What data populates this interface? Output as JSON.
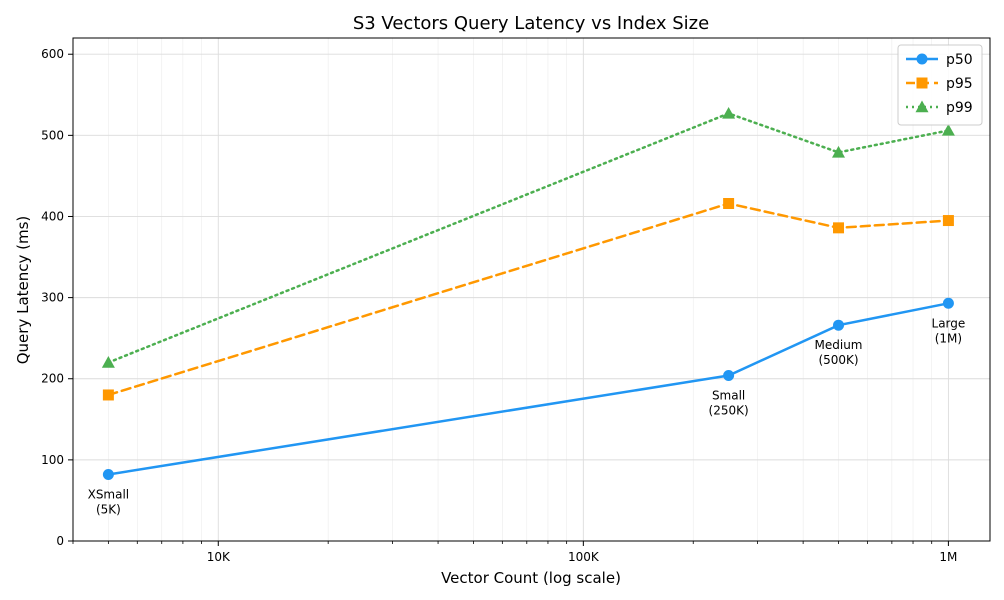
{
  "chart_data": {
    "type": "line",
    "title": "S3 Vectors Query Latency vs Index Size",
    "xlabel": "Vector Count (log scale)",
    "ylabel": "Query Latency (ms)",
    "x_scale": "log",
    "xlim": [
      4000,
      1300000
    ],
    "ylim": [
      0,
      620
    ],
    "x_ticks": [
      {
        "value": 10000,
        "label": "10K"
      },
      {
        "value": 100000,
        "label": "100K"
      },
      {
        "value": 1000000,
        "label": "1M"
      }
    ],
    "y_ticks": [
      0,
      100,
      200,
      300,
      400,
      500,
      600
    ],
    "grid": true,
    "legend_position": "top-right",
    "x": [
      5000,
      250000,
      500000,
      1000000
    ],
    "point_labels": [
      [
        "XSmall",
        "(5K)"
      ],
      [
        "Small",
        "(250K)"
      ],
      [
        "Medium",
        "(500K)"
      ],
      [
        "Large",
        "(1M)"
      ]
    ],
    "series": [
      {
        "name": "p50",
        "values": [
          82,
          204,
          266,
          293
        ],
        "color": "#2196f3",
        "line_style": "solid",
        "marker": "circle"
      },
      {
        "name": "p95",
        "values": [
          180,
          416,
          386,
          395
        ],
        "color": "#ff9800",
        "line_style": "dashed",
        "marker": "square"
      },
      {
        "name": "p99",
        "values": [
          220,
          527,
          479,
          506
        ],
        "color": "#4caf50",
        "line_style": "dotted",
        "marker": "triangle"
      }
    ]
  }
}
